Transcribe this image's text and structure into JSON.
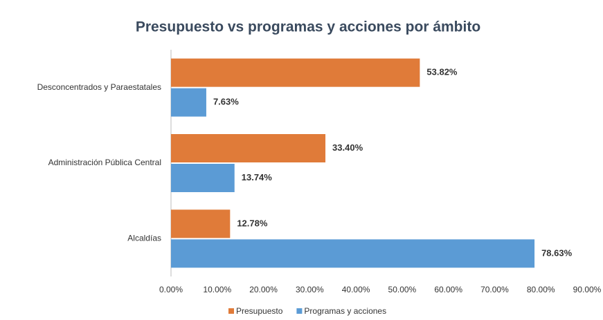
{
  "chart_data": {
    "type": "barh",
    "title": "Presupuesto vs programas y acciones por ámbito",
    "categories": [
      "Desconcentrados y Paraestatales",
      "Administración Pública Central",
      "Alcaldías"
    ],
    "series": [
      {
        "name": "Presupuesto",
        "color": "#e07b39",
        "values": [
          53.82,
          33.4,
          12.78
        ],
        "value_labels": [
          "53.82%",
          "33.40%",
          "12.78%"
        ]
      },
      {
        "name": "Programas y acciones",
        "color": "#5b9bd5",
        "values": [
          7.63,
          13.74,
          78.63
        ],
        "value_labels": [
          "7.63%",
          "13.74%",
          "78.63%"
        ]
      }
    ],
    "xlim": [
      0,
      90
    ],
    "xticks": [
      {
        "value": 0,
        "label": "0.00%"
      },
      {
        "value": 10,
        "label": "10.00%"
      },
      {
        "value": 20,
        "label": "20.00%"
      },
      {
        "value": 30,
        "label": "30.00%"
      },
      {
        "value": 40,
        "label": "40.00%"
      },
      {
        "value": 50,
        "label": "50.00%"
      },
      {
        "value": 60,
        "label": "60.00%"
      },
      {
        "value": 70,
        "label": "70.00%"
      },
      {
        "value": 80,
        "label": "80.00%"
      },
      {
        "value": 90,
        "label": "90.00%"
      }
    ],
    "legend": "bottom"
  }
}
